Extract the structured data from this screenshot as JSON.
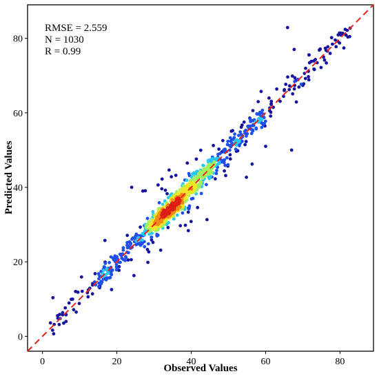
{
  "chart_data": {
    "type": "scatter",
    "xlabel": "Observed Values",
    "ylabel": "Predicted Values",
    "xlim": [
      -4,
      89
    ],
    "ylim": [
      -4,
      89
    ],
    "x_ticks": [
      0,
      20,
      40,
      60,
      80
    ],
    "y_ticks": [
      0,
      20,
      40,
      60,
      80
    ],
    "x_tick_labels": [
      "0",
      "20",
      "40",
      "60",
      "80"
    ],
    "y_tick_labels": [
      "0",
      "20",
      "40",
      "60",
      "80"
    ],
    "annotations": [
      "RMSE = 2.559",
      "N = 1030",
      "R = 0.99"
    ],
    "reference_line": {
      "slope": 1,
      "intercept": 0,
      "style": "dashed",
      "color": "#e8241c"
    },
    "grid": false,
    "legend": "none",
    "colormap": [
      "#1414a0",
      "#1e50f0",
      "#28c8f0",
      "#a0f060",
      "#f0e628",
      "#f08c14",
      "#dc1e14"
    ],
    "points": {
      "n": 1030,
      "x_range": [
        2,
        83
      ],
      "max_abs_residual": 17,
      "density_peak": [
        30,
        42
      ]
    }
  }
}
